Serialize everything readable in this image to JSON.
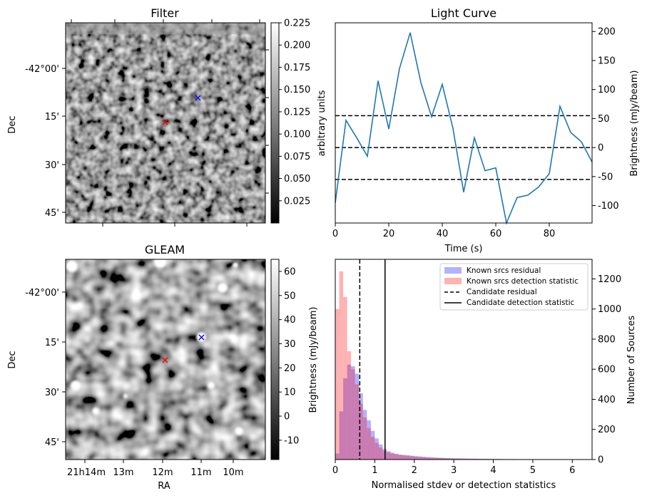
{
  "colors": {
    "line": "#1f77b4",
    "known_residual": "#0000ff",
    "known_detection": "#ff0000"
  },
  "chart_data": [
    {
      "type": "heatmap",
      "title": "Filter",
      "xlabel": "",
      "ylabel": "Dec",
      "y_ticks": [
        "-42°00'",
        "15'",
        "30'",
        "45'"
      ],
      "colorbar": {
        "label": "arbitrary units",
        "range": [
          0.0,
          0.225
        ],
        "ticks": [
          "0.225",
          "0.200",
          "0.175",
          "0.150",
          "0.125",
          "0.100",
          "0.075",
          "0.050",
          "0.025"
        ]
      },
      "markers": [
        {
          "kind": "candidate",
          "color": "blue",
          "symbol": "x"
        },
        {
          "kind": "known",
          "color": "red",
          "symbol": "x"
        }
      ]
    },
    {
      "type": "line",
      "title": "Light Curve",
      "xlabel": "Time (s)",
      "ylabel": "Brightness (mJy/beam)",
      "xlim": [
        0,
        96
      ],
      "ylim": [
        -130,
        215
      ],
      "x_ticks": [
        "0",
        "20",
        "40",
        "60",
        "80"
      ],
      "y_ticks": [
        "200",
        "150",
        "100",
        "50",
        "0",
        "-50",
        "-100"
      ],
      "series": [
        {
          "x": [
            0,
            4,
            8,
            12,
            16,
            20,
            24,
            28,
            32,
            36,
            40,
            44,
            48,
            52,
            56,
            60,
            64,
            68,
            72,
            76,
            80,
            84,
            88,
            92,
            96
          ],
          "values": [
            -95,
            47,
            17,
            -15,
            115,
            32,
            136,
            198,
            112,
            53,
            109,
            33,
            -77,
            17,
            -40,
            -35,
            -130,
            -86,
            -82,
            -68,
            -45,
            71,
            26,
            10,
            -25
          ]
        }
      ],
      "hlines": [
        {
          "y": 55,
          "style": "dashed"
        },
        {
          "y": 0,
          "style": "dashed"
        },
        {
          "y": -55,
          "style": "dashed"
        }
      ]
    },
    {
      "type": "heatmap",
      "title": "GLEAM",
      "xlabel": "RA",
      "ylabel": "Dec",
      "x_ticks": [
        "21h14m",
        "13m",
        "12m",
        "11m",
        "10m"
      ],
      "y_ticks": [
        "-42°00'",
        "15'",
        "30'",
        "45'"
      ],
      "colorbar": {
        "label": "Brightness (mJy/beam)",
        "range": [
          -18,
          65
        ],
        "ticks": [
          "60",
          "50",
          "40",
          "30",
          "20",
          "10",
          "0",
          "-10"
        ]
      },
      "markers": [
        {
          "kind": "candidate",
          "color": "blue",
          "symbol": "x"
        },
        {
          "kind": "known",
          "color": "red",
          "symbol": "x"
        }
      ]
    },
    {
      "type": "bar",
      "title": "",
      "xlabel": "Normalised stdev or detection statistics",
      "ylabel": "Number of Sources",
      "xlim": [
        0,
        6.5
      ],
      "ylim": [
        0,
        1330
      ],
      "x_ticks": [
        "0",
        "1",
        "2",
        "3",
        "4",
        "5",
        "6"
      ],
      "y_ticks": [
        "0",
        "200",
        "400",
        "600",
        "800",
        "1000",
        "1200"
      ],
      "bin_width": 0.1,
      "series": [
        {
          "name": "Known srcs residual",
          "values": [
            40,
            320,
            540,
            630,
            620,
            570,
            440,
            330,
            260,
            190,
            140,
            100,
            70,
            55,
            45,
            38,
            33,
            30,
            28,
            25,
            22,
            20,
            18,
            16,
            15,
            13,
            12,
            11,
            10,
            9,
            8,
            8,
            7,
            7,
            6,
            6,
            5,
            5,
            5,
            4,
            4,
            4,
            3,
            3,
            3,
            3,
            2,
            2,
            2,
            2,
            2,
            2,
            1,
            1,
            1,
            1,
            1,
            1,
            1,
            1,
            1,
            1,
            1,
            1,
            1
          ]
        },
        {
          "name": "Known srcs detection statistic",
          "values": [
            1000,
            1250,
            1080,
            720,
            600,
            500,
            370,
            280,
            210,
            150,
            110,
            80,
            60,
            48,
            40,
            35,
            30,
            28,
            25,
            22,
            20,
            18,
            16,
            14,
            12,
            11,
            10,
            9,
            8,
            7,
            7,
            6,
            6,
            5,
            5,
            5,
            4,
            4,
            4,
            3,
            3,
            3,
            3,
            2,
            2,
            2,
            2,
            2,
            2,
            1,
            1,
            1,
            1,
            1,
            1,
            1,
            1,
            1,
            1,
            1,
            1,
            1,
            1,
            1,
            1
          ]
        }
      ],
      "vlines": [
        {
          "name": "Candidate residual",
          "x": 0.62,
          "style": "dashed"
        },
        {
          "name": "Candidate detection statistic",
          "x": 1.26,
          "style": "solid"
        }
      ],
      "legend_placement": "upper right"
    }
  ]
}
